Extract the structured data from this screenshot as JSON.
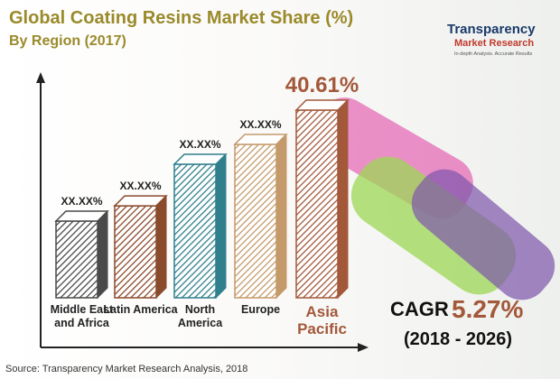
{
  "chart_data": {
    "type": "bar3d",
    "title": "Global Coating Resins Market Share (%)",
    "subtitle": "By Region (2017)",
    "categories": [
      "Middle East and Africa",
      "Latin America",
      "North America",
      "Europe",
      "Asia Pacific"
    ],
    "values": [
      16.6,
      19.9,
      28.9,
      33.2,
      40.61
    ],
    "value_labels": [
      "XX.XX%",
      "XX.XX%",
      "XX.XX%",
      "XX.XX%",
      "40.61%"
    ],
    "colors": [
      "#4a4a4a",
      "#8a4a2c",
      "#2f7f8c",
      "#c49a6a",
      "#a3583a"
    ],
    "annotations": {
      "cagr_label": "CAGR",
      "cagr_value": "5.27%",
      "period": "(2018 - 2026)"
    },
    "logo": {
      "name": "Transparency",
      "line2": "Market Research",
      "tagline": "In-depth Analysis. Accurate Results"
    },
    "source": "Source: Transparency Market Research Analysis, 2018"
  }
}
